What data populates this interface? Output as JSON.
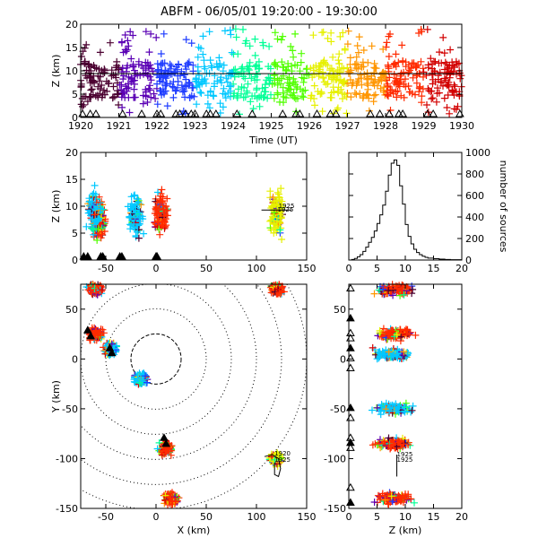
{
  "title": "ABFM - 06/05/01 19:20:00 - 19:30:00",
  "colors": {
    "background": "#ffffff",
    "axes": "#000000",
    "time_scale": [
      "#4b0030",
      "#5a00b4",
      "#1e3cff",
      "#00c8ff",
      "#00ff96",
      "#50ff00",
      "#e6f000",
      "#ff9600",
      "#ff2a00",
      "#d20000"
    ]
  },
  "chart_data": [
    {
      "id": "time_height",
      "type": "scatter",
      "xlabel": "Time (UT)",
      "ylabel": "Z (km)",
      "xlim": [
        1920,
        1930
      ],
      "ylim": [
        0,
        20
      ],
      "xticks": [
        "1920",
        "1921",
        "1922",
        "1923",
        "1924",
        "1925",
        "1926",
        "1927",
        "1928",
        "1929",
        "1930"
      ],
      "yticks": [
        "0",
        "5",
        "10",
        "15",
        "20"
      ],
      "reference_line_z": 9.4,
      "source_band_z": [
        4,
        12
      ],
      "station_markers_time": [
        1920.05,
        1920.25,
        1920.4,
        1921.1,
        1921.6,
        1922.0,
        1922.1,
        1922.5,
        1922.6,
        1922.75,
        1922.9,
        1923.0,
        1923.3,
        1923.4,
        1923.55,
        1924.1,
        1924.5,
        1925.3,
        1925.65,
        1925.75,
        1926.2,
        1926.55,
        1926.7,
        1927.6,
        1927.85,
        1928.1,
        1928.35,
        1928.45,
        1929.1,
        1929.25,
        1929.95
      ]
    },
    {
      "id": "x_height",
      "type": "scatter",
      "xlabel": "",
      "ylabel": "Z (km)",
      "xlim": [
        -75,
        150
      ],
      "ylim": [
        0,
        20
      ],
      "xticks": [
        "-50",
        "0",
        "50",
        "100",
        "150"
      ],
      "yticks": [
        "0",
        "5",
        "10",
        "15",
        "20"
      ],
      "clusters": [
        {
          "x": -57,
          "z": 7.5,
          "color": "#ff2a00"
        },
        {
          "x": -62,
          "z": 9.0,
          "color": "#00c8ff"
        },
        {
          "x": -20,
          "z": 8.0,
          "color": "#00c8ff"
        },
        {
          "x": 5,
          "z": 8.5,
          "color": "#ff2a00"
        },
        {
          "x": 120,
          "z": 8.5,
          "color": "#e6f000"
        }
      ],
      "track_label_start": "1925",
      "track_label_end": "1925"
    },
    {
      "id": "height_histogram",
      "type": "line",
      "xlabel": "",
      "ylabel": "number of sources",
      "xlim": [
        0,
        20
      ],
      "ylim": [
        0,
        1000
      ],
      "xticks": [
        "0",
        "5",
        "10",
        "15",
        "20"
      ],
      "yticks": [
        "0",
        "200",
        "400",
        "600",
        "800",
        "1000"
      ],
      "x": [
        0,
        0.5,
        1,
        1.5,
        2,
        2.5,
        3,
        3.5,
        4,
        4.5,
        5,
        5.5,
        6,
        6.5,
        7,
        7.5,
        8,
        8.5,
        9,
        9.5,
        10,
        10.5,
        11,
        11.5,
        12,
        12.5,
        13,
        13.5,
        14,
        15,
        16,
        17,
        18,
        20
      ],
      "values": [
        0,
        5,
        15,
        30,
        50,
        80,
        120,
        165,
        210,
        270,
        340,
        420,
        510,
        640,
        790,
        900,
        930,
        880,
        690,
        520,
        330,
        220,
        150,
        100,
        70,
        50,
        35,
        25,
        18,
        12,
        8,
        5,
        3,
        0
      ]
    },
    {
      "id": "plan_view",
      "type": "scatter",
      "xlabel": "X (km)",
      "ylabel": "Y (km)",
      "xlim": [
        -75,
        150
      ],
      "ylim": [
        -150,
        75
      ],
      "xticks": [
        "-50",
        "0",
        "50",
        "100",
        "150"
      ],
      "yticks": [
        "-150",
        "-100",
        "-50",
        "0",
        "50"
      ],
      "range_rings_km": [
        25,
        50,
        75,
        100,
        125,
        150
      ],
      "clusters": [
        {
          "x": -60,
          "y": 25,
          "color": "#ff2a00"
        },
        {
          "x": -45,
          "y": 10,
          "color": "#00c8ff"
        },
        {
          "x": -60,
          "y": 70,
          "color": "#ff2a00"
        },
        {
          "x": -15,
          "y": -20,
          "color": "#00c8ff"
        },
        {
          "x": 10,
          "y": -90,
          "color": "#ff2a00"
        },
        {
          "x": 15,
          "y": -140,
          "color": "#ff2a00"
        },
        {
          "x": 120,
          "y": -100,
          "color": "#e6f000"
        },
        {
          "x": 120,
          "y": 70,
          "color": "#ff2a00"
        }
      ],
      "track_label_start": "1920",
      "track_label_end": "1925"
    },
    {
      "id": "height_y",
      "type": "scatter",
      "xlabel": "Z (km)",
      "ylabel": "",
      "xlim": [
        0,
        20
      ],
      "ylim": [
        -150,
        75
      ],
      "xticks": [
        "0",
        "5",
        "10",
        "15",
        "20"
      ],
      "yticks": [
        "-150",
        "-100",
        "-50",
        "0",
        "50"
      ],
      "clusters": [
        {
          "z": 8,
          "y": 25,
          "color": "#ff2a00"
        },
        {
          "z": 8,
          "y": 5,
          "color": "#00c8ff"
        },
        {
          "z": 8,
          "y": -85,
          "color": "#ff2a00"
        },
        {
          "z": 8,
          "y": -140,
          "color": "#ff2a00"
        },
        {
          "z": 8,
          "y": 70,
          "color": "#ff2a00"
        },
        {
          "z": 8,
          "y": -50,
          "color": "#00c8ff"
        }
      ],
      "track_label_start": "1925",
      "track_label_end": "1925"
    }
  ]
}
